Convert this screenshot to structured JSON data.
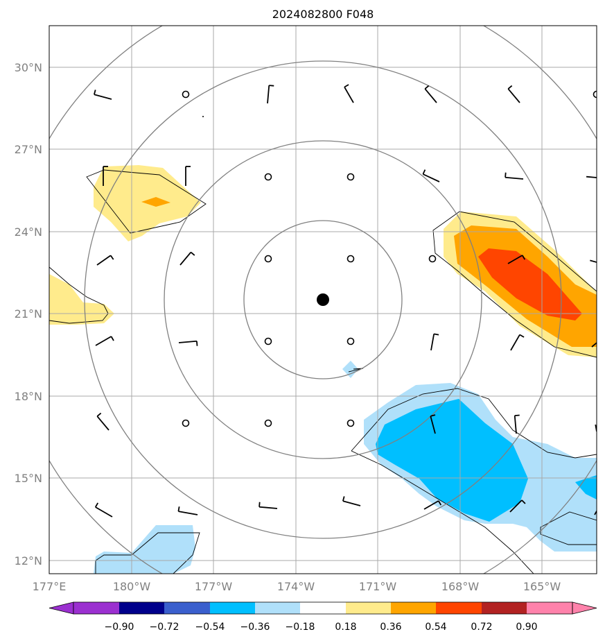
{
  "title": "2024082800 F048",
  "lat_ticks": [
    "30°N",
    "27°N",
    "24°N",
    "21°N",
    "18°N",
    "15°N",
    "12°N"
  ],
  "lon_ticks": [
    "177°E",
    "180°W",
    "177°W",
    "174°W",
    "171°W",
    "168°W",
    "165°W"
  ],
  "colorbar": {
    "labels": [
      "−0.90",
      "−0.72",
      "−0.54",
      "−0.36",
      "−0.18",
      "0.18",
      "0.36",
      "0.54",
      "0.72",
      "0.90"
    ],
    "colors": [
      "#9b30d0",
      "#00008b",
      "#3a5fcd",
      "#00bfff",
      "#b0e0fa",
      "#ffffff",
      "#ffeb8c",
      "#ffa500",
      "#ff4500",
      "#b22222",
      "#ff82ab"
    ]
  },
  "center_marker": "storm-center-dot"
}
